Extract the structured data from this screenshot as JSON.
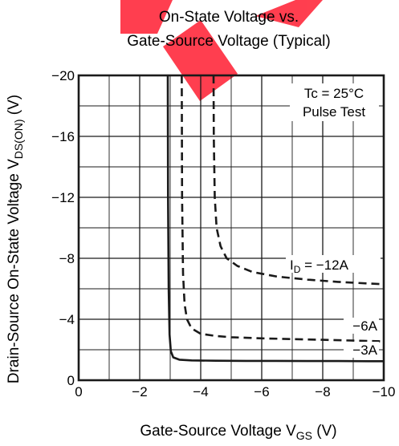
{
  "chart_data": {
    "type": "line",
    "title": [
      "On-State Voltage vs.",
      "Gate-Source Voltage  (Typical)"
    ],
    "xlabel": {
      "text": "Gate-Source Voltage  V",
      "sub": "GS",
      "unit": " (V)"
    },
    "ylabel": {
      "text": "Drain-Source On-State Voltage  V",
      "sub": "DS(ON)",
      "unit": " (V)"
    },
    "xlim": [
      0,
      -10
    ],
    "ylim": [
      0,
      -20
    ],
    "x_ticks": [
      0,
      -2,
      -4,
      -6,
      -8,
      -10
    ],
    "x_tick_labels": [
      "0",
      "−2",
      "−4",
      "−6",
      "−8",
      "−10"
    ],
    "y_ticks": [
      0,
      -4,
      -8,
      -12,
      -16,
      -20
    ],
    "y_tick_labels": [
      "0",
      "−4",
      "−8",
      "−12",
      "−16",
      "−20"
    ],
    "grid": true,
    "minor_grid": {
      "x_step": 1,
      "y_step": 2
    },
    "annotations": {
      "conditions": [
        "Tc = 25°C",
        "Pulse Test"
      ],
      "id_label": {
        "text": "I",
        "sub": "D",
        "value": " = −12A"
      }
    },
    "series": [
      {
        "name": "−3A",
        "style": "solid",
        "x": [
          -2.92,
          -2.93,
          -2.95,
          -2.98,
          -3.02,
          -3.1,
          -3.3,
          -3.7,
          -4.5,
          -5.5,
          -6.5,
          -7.5,
          -8.5,
          -9.5,
          -10.0
        ],
        "y": [
          -20.0,
          -12.0,
          -6.0,
          -3.0,
          -1.9,
          -1.5,
          -1.35,
          -1.3,
          -1.28,
          -1.27,
          -1.27,
          -1.26,
          -1.26,
          -1.25,
          -1.25
        ]
      },
      {
        "name": "−6A",
        "style": "dashed",
        "x": [
          -3.38,
          -3.39,
          -3.42,
          -3.47,
          -3.55,
          -3.7,
          -4.0,
          -4.5,
          -5.0,
          -6.0,
          -7.0,
          -8.0,
          -9.0,
          -10.0
        ],
        "y": [
          -20.0,
          -12.0,
          -7.0,
          -5.0,
          -4.0,
          -3.4,
          -3.05,
          -2.9,
          -2.82,
          -2.75,
          -2.7,
          -2.65,
          -2.6,
          -2.55
        ]
      },
      {
        "name": "−12A",
        "style": "dashed",
        "x": [
          -4.42,
          -4.43,
          -4.46,
          -4.52,
          -4.65,
          -4.85,
          -5.2,
          -5.7,
          -6.5,
          -7.5,
          -8.5,
          -9.5,
          -10.0
        ],
        "y": [
          -20.0,
          -16.0,
          -12.0,
          -10.0,
          -8.8,
          -8.0,
          -7.5,
          -7.1,
          -6.8,
          -6.6,
          -6.45,
          -6.35,
          -6.3
        ]
      }
    ],
    "series_labels": [
      "−6A",
      "−3A"
    ]
  }
}
